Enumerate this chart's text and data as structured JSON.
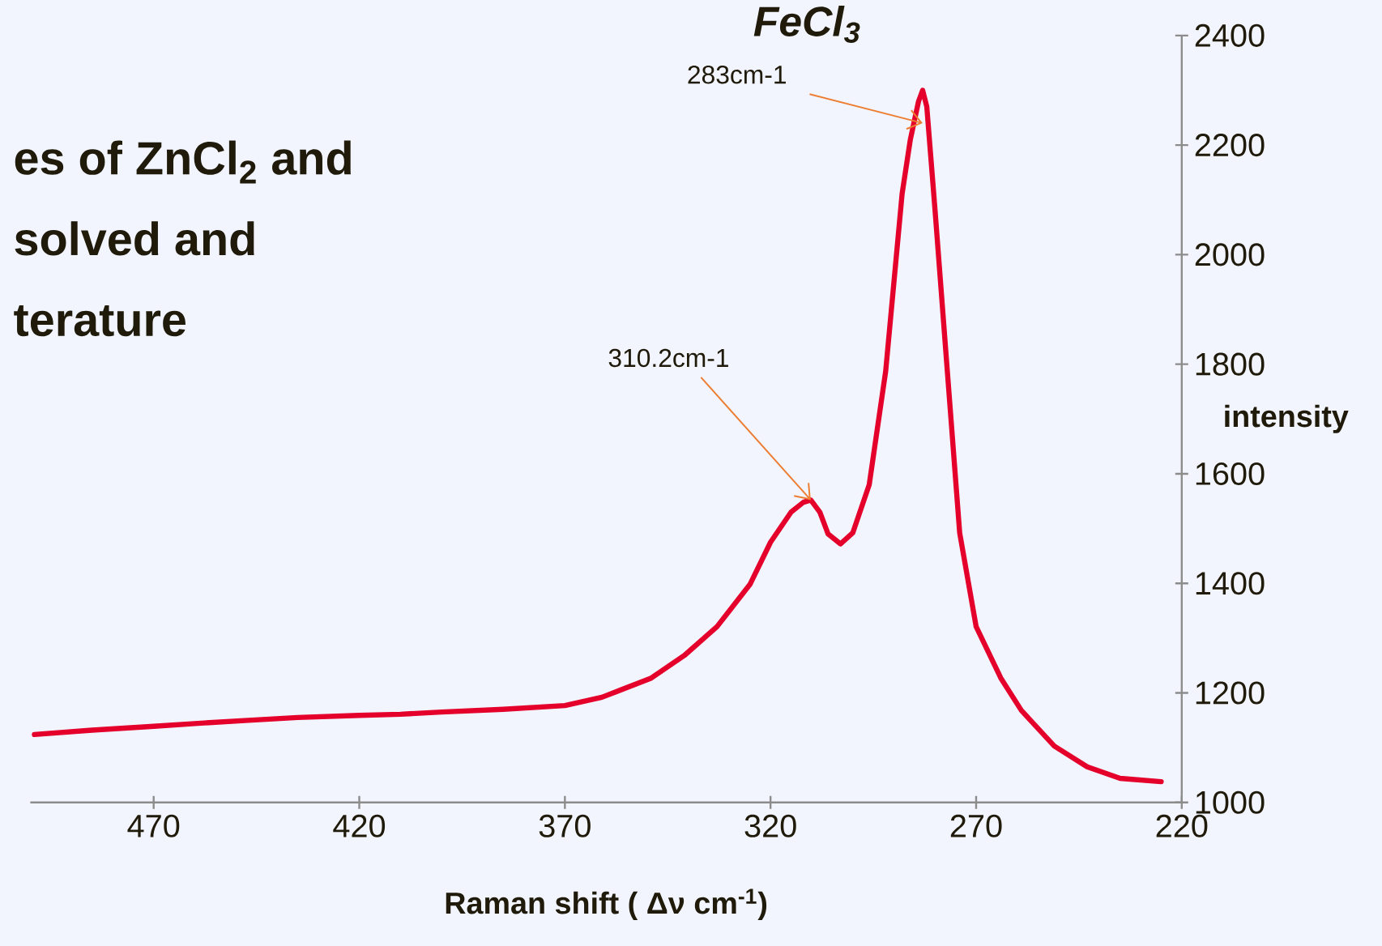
{
  "chart_data": {
    "type": "line",
    "title": "FeCl$_{3}$",
    "xlabel": "Raman shift ( Δν cm$^{-1}$)",
    "ylabel": "intensity",
    "x": [
      499,
      485,
      470,
      460,
      447,
      435,
      420,
      410,
      400,
      385,
      370,
      361,
      349,
      341,
      333,
      325,
      320,
      315,
      312,
      310.2,
      308,
      306,
      303,
      300,
      296,
      292,
      288,
      286,
      284,
      283,
      282,
      280,
      277,
      274,
      270,
      264,
      259,
      251,
      243,
      235,
      225
    ],
    "series": [
      {
        "color": "#e4002b",
        "values": [
          1124,
          1132,
          1139,
          1144,
          1150,
          1155,
          1159,
          1161,
          1165,
          1170,
          1177,
          1192,
          1227,
          1268,
          1321,
          1398,
          1475,
          1530,
          1548,
          1552,
          1530,
          1490,
          1472,
          1492,
          1580,
          1787,
          2111,
          2210,
          2280,
          2300,
          2270,
          2082,
          1787,
          1492,
          1321,
          1227,
          1168,
          1103,
          1065,
          1044,
          1038
        ]
      }
    ],
    "xlim": [
      500,
      220
    ],
    "ylim": [
      1000,
      2400
    ],
    "xticks": [
      470,
      420,
      370,
      320,
      270,
      220
    ],
    "yticks": [
      1000,
      1200,
      1400,
      1600,
      1800,
      2000,
      2200,
      2400
    ],
    "marker": "none",
    "line_style": "solid",
    "annotations": [
      {
        "text": "283cm-1",
        "x": 283,
        "y": 2240
      },
      {
        "text": "310.2cm-1",
        "x": 310.2,
        "y": 1552
      },
      "es of ZnCl$_{2}$ and",
      "solved and",
      "terature"
    ]
  }
}
